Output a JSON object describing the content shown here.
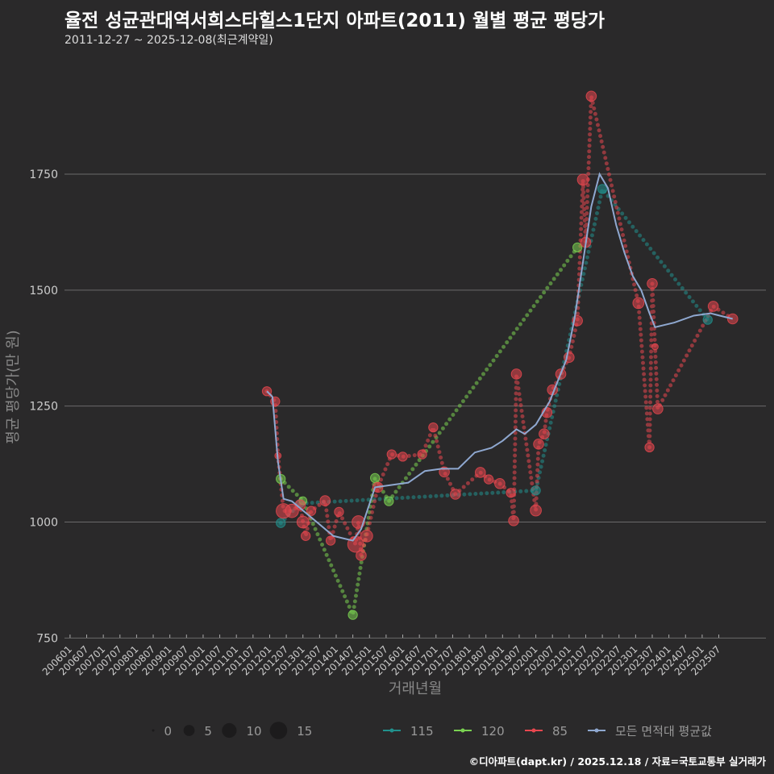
{
  "title": "율전 성균관대역서희스타힐스1단지 아파트(2011) 월별 평균 평당가",
  "subtitle": "2011-12-27 ~ 2025-12-08(최근계약일)",
  "footer": "©디아파트(dapt.kr) / 2025.12.18 / 자료=국토교통부 실거래가",
  "chart_data": {
    "type": "scatter",
    "title": "율전 성균관대역서희스타힐스1단지 아파트(2011) 월별 평균 평당가",
    "xlabel": "거래년월",
    "ylabel": "평균 평당가(만 원)",
    "xlim": [
      "200511",
      "202612"
    ],
    "ylim": [
      735,
      1995
    ],
    "yticks": [
      750,
      1000,
      1250,
      1500,
      1750
    ],
    "xticks": [
      "200601",
      "200607",
      "200701",
      "200707",
      "200801",
      "200807",
      "200901",
      "200907",
      "201001",
      "201007",
      "201101",
      "201107",
      "201201",
      "201207",
      "201301",
      "201307",
      "201401",
      "201407",
      "201501",
      "201507",
      "201601",
      "201607",
      "201701",
      "201707",
      "201801",
      "201807",
      "201901",
      "201907",
      "202001",
      "202007",
      "202101",
      "202107",
      "202201",
      "202207",
      "202301",
      "202307",
      "202401",
      "202407",
      "202501",
      "202507"
    ],
    "grid": true,
    "legend_position": "bottom",
    "size_legend": {
      "values": [
        0,
        5,
        10,
        15
      ]
    },
    "series": [
      {
        "name": "115",
        "color": "#21908c",
        "points": [
          [
            "201205",
            998,
            3
          ],
          [
            "201212",
            1040,
            2
          ],
          [
            "202001",
            1068,
            3
          ],
          [
            "202201",
            1718,
            3
          ],
          [
            "202503",
            1436,
            3
          ]
        ]
      },
      {
        "name": "120",
        "color": "#7ad151",
        "points": [
          [
            "201205",
            1093,
            3
          ],
          [
            "201301",
            1046,
            2
          ],
          [
            "201407",
            800,
            3
          ],
          [
            "201503",
            1095,
            3
          ],
          [
            "201508",
            1045,
            3
          ],
          [
            "202104",
            1592,
            3
          ]
        ]
      },
      {
        "name": "85",
        "color": "#e8474f",
        "points": [
          [
            "201112",
            1282,
            3
          ],
          [
            "201203",
            1260,
            3
          ],
          [
            "201204",
            1143,
            1
          ],
          [
            "201206",
            1024,
            10
          ],
          [
            "201209",
            1024,
            8
          ],
          [
            "201212",
            1037,
            4
          ],
          [
            "201301",
            1000,
            6
          ],
          [
            "201302",
            970,
            3
          ],
          [
            "201304",
            1024,
            3
          ],
          [
            "201309",
            1046,
            4
          ],
          [
            "201311",
            960,
            3
          ],
          [
            "201402",
            1022,
            3
          ],
          [
            "201408",
            952,
            12
          ],
          [
            "201409",
            1000,
            7
          ],
          [
            "201410",
            928,
            4
          ],
          [
            "201412",
            970,
            6
          ],
          [
            "201504",
            1075,
            4
          ],
          [
            "201509",
            1146,
            3
          ],
          [
            "201601",
            1141,
            3
          ],
          [
            "201608",
            1146,
            3
          ],
          [
            "201612",
            1204,
            3
          ],
          [
            "201704",
            1108,
            4
          ],
          [
            "201708",
            1060,
            4
          ],
          [
            "201805",
            1107,
            4
          ],
          [
            "201808",
            1092,
            3
          ],
          [
            "201812",
            1083,
            4
          ],
          [
            "201904",
            1063,
            3
          ],
          [
            "201905",
            1003,
            4
          ],
          [
            "201906",
            1319,
            4
          ],
          [
            "202001",
            1025,
            5
          ],
          [
            "202002",
            1168,
            4
          ],
          [
            "202004",
            1190,
            4
          ],
          [
            "202005",
            1236,
            4
          ],
          [
            "202007",
            1285,
            4
          ],
          [
            "202010",
            1319,
            4
          ],
          [
            "202101",
            1355,
            4
          ],
          [
            "202104",
            1434,
            4
          ],
          [
            "202106",
            1738,
            5
          ],
          [
            "202107",
            1603,
            4
          ],
          [
            "202109",
            1918,
            4
          ],
          [
            "202302",
            1472,
            5
          ],
          [
            "202306",
            1161,
            3
          ],
          [
            "202307",
            1514,
            4
          ],
          [
            "202308",
            1378,
            1
          ],
          [
            "202309",
            1244,
            4
          ],
          [
            "202505",
            1465,
            4
          ],
          [
            "202512",
            1438,
            4
          ]
        ]
      }
    ],
    "average": {
      "name": "모든 면적대 평균값",
      "color": "#8fa8d0",
      "points": [
        [
          "201112",
          1282
        ],
        [
          "201202",
          1270
        ],
        [
          "201204",
          1130
        ],
        [
          "201206",
          1050
        ],
        [
          "201209",
          1045
        ],
        [
          "201212",
          1030
        ],
        [
          "201306",
          1000
        ],
        [
          "201312",
          970
        ],
        [
          "201407",
          960
        ],
        [
          "201410",
          985
        ],
        [
          "201503",
          1075
        ],
        [
          "201509",
          1080
        ],
        [
          "201603",
          1085
        ],
        [
          "201609",
          1110
        ],
        [
          "201703",
          1115
        ],
        [
          "201709",
          1115
        ],
        [
          "201803",
          1150
        ],
        [
          "201809",
          1160
        ],
        [
          "201901",
          1175
        ],
        [
          "201906",
          1200
        ],
        [
          "201909",
          1190
        ],
        [
          "202001",
          1210
        ],
        [
          "202006",
          1260
        ],
        [
          "202012",
          1350
        ],
        [
          "202103",
          1440
        ],
        [
          "202106",
          1560
        ],
        [
          "202109",
          1680
        ],
        [
          "202112",
          1750
        ],
        [
          "202203",
          1720
        ],
        [
          "202206",
          1640
        ],
        [
          "202209",
          1580
        ],
        [
          "202212",
          1530
        ],
        [
          "202303",
          1500
        ],
        [
          "202306",
          1450
        ],
        [
          "202308",
          1420
        ],
        [
          "202403",
          1430
        ],
        [
          "202410",
          1445
        ],
        [
          "202504",
          1450
        ],
        [
          "202512",
          1438
        ]
      ]
    },
    "legend": [
      "115",
      "120",
      "85",
      "모든 면적대 평균값"
    ]
  }
}
